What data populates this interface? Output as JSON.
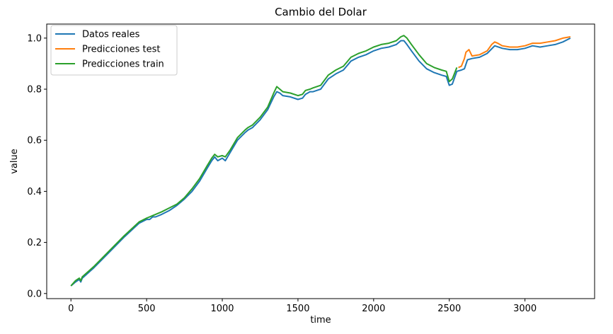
{
  "chart_data": {
    "type": "line",
    "title": "Cambio del Dolar",
    "xlabel": "time",
    "ylabel": "value",
    "xlim": [
      -160,
      3460
    ],
    "ylim": [
      -0.02,
      1.055
    ],
    "xticks": [
      0,
      500,
      1000,
      1500,
      2000,
      2500,
      3000
    ],
    "yticks": [
      0.0,
      0.2,
      0.4,
      0.6,
      0.8,
      1.0
    ],
    "xtick_labels": [
      "0",
      "500",
      "1000",
      "1500",
      "2000",
      "2500",
      "3000"
    ],
    "ytick_labels": [
      "0.0",
      "0.2",
      "0.4",
      "0.6",
      "0.8",
      "1.0"
    ],
    "grid": false,
    "legend_position": "top-left",
    "series": [
      {
        "name": "Datos reales",
        "color": "#1f77b4",
        "x": [
          0,
          30,
          55,
          65,
          75,
          150,
          250,
          350,
          450,
          500,
          520,
          540,
          560,
          600,
          650,
          700,
          750,
          800,
          850,
          900,
          930,
          950,
          970,
          1000,
          1020,
          1050,
          1100,
          1150,
          1170,
          1200,
          1250,
          1300,
          1340,
          1360,
          1380,
          1400,
          1450,
          1500,
          1530,
          1550,
          1580,
          1600,
          1650,
          1700,
          1750,
          1800,
          1850,
          1900,
          1950,
          2000,
          2050,
          2100,
          2150,
          2180,
          2200,
          2220,
          2250,
          2300,
          2350,
          2400,
          2450,
          2480,
          2500,
          2520,
          2550,
          2580,
          2600,
          2620,
          2650,
          2700,
          2750,
          2800,
          2850,
          2900,
          2950,
          3000,
          3050,
          3100,
          3150,
          3200,
          3250,
          3300
        ],
        "y": [
          0.03,
          0.045,
          0.055,
          0.045,
          0.06,
          0.1,
          0.16,
          0.22,
          0.275,
          0.29,
          0.29,
          0.3,
          0.3,
          0.31,
          0.325,
          0.345,
          0.37,
          0.4,
          0.44,
          0.49,
          0.52,
          0.535,
          0.52,
          0.53,
          0.52,
          0.55,
          0.6,
          0.63,
          0.64,
          0.65,
          0.68,
          0.72,
          0.77,
          0.79,
          0.785,
          0.775,
          0.77,
          0.76,
          0.765,
          0.78,
          0.79,
          0.79,
          0.8,
          0.84,
          0.86,
          0.875,
          0.91,
          0.925,
          0.935,
          0.95,
          0.96,
          0.965,
          0.975,
          0.99,
          0.99,
          0.975,
          0.95,
          0.91,
          0.88,
          0.865,
          0.855,
          0.85,
          0.815,
          0.82,
          0.87,
          0.875,
          0.88,
          0.915,
          0.92,
          0.925,
          0.94,
          0.97,
          0.96,
          0.955,
          0.955,
          0.96,
          0.97,
          0.965,
          0.97,
          0.975,
          0.985,
          1.0
        ]
      },
      {
        "name": "Predicciones test",
        "color": "#ff7f0e",
        "x": [
          2560,
          2580,
          2600,
          2610,
          2630,
          2650,
          2700,
          2750,
          2780,
          2800,
          2820,
          2850,
          2900,
          2950,
          3000,
          3050,
          3100,
          3150,
          3200,
          3250,
          3300
        ],
        "y": [
          0.885,
          0.89,
          0.92,
          0.945,
          0.955,
          0.93,
          0.935,
          0.95,
          0.975,
          0.985,
          0.98,
          0.97,
          0.965,
          0.965,
          0.97,
          0.98,
          0.98,
          0.985,
          0.99,
          1.0,
          1.005
        ]
      },
      {
        "name": "Predicciones train",
        "color": "#2ca02c",
        "x": [
          0,
          30,
          55,
          65,
          75,
          150,
          250,
          350,
          450,
          500,
          520,
          540,
          560,
          600,
          650,
          700,
          750,
          800,
          850,
          900,
          930,
          950,
          970,
          1000,
          1020,
          1050,
          1100,
          1150,
          1170,
          1200,
          1250,
          1300,
          1340,
          1360,
          1380,
          1400,
          1450,
          1500,
          1530,
          1550,
          1580,
          1600,
          1650,
          1700,
          1750,
          1800,
          1850,
          1900,
          1950,
          2000,
          2050,
          2100,
          2150,
          2180,
          2200,
          2220,
          2250,
          2300,
          2350,
          2400,
          2450,
          2480,
          2500,
          2520,
          2550
        ],
        "y": [
          0.03,
          0.05,
          0.06,
          0.05,
          0.065,
          0.105,
          0.165,
          0.225,
          0.28,
          0.295,
          0.3,
          0.305,
          0.31,
          0.32,
          0.335,
          0.35,
          0.375,
          0.41,
          0.45,
          0.5,
          0.53,
          0.545,
          0.535,
          0.54,
          0.535,
          0.56,
          0.61,
          0.64,
          0.65,
          0.66,
          0.69,
          0.73,
          0.785,
          0.81,
          0.8,
          0.79,
          0.785,
          0.775,
          0.78,
          0.795,
          0.8,
          0.805,
          0.815,
          0.855,
          0.875,
          0.89,
          0.925,
          0.94,
          0.95,
          0.965,
          0.975,
          0.98,
          0.99,
          1.005,
          1.01,
          1.0,
          0.975,
          0.935,
          0.9,
          0.885,
          0.875,
          0.87,
          0.83,
          0.84,
          0.885
        ]
      }
    ]
  }
}
